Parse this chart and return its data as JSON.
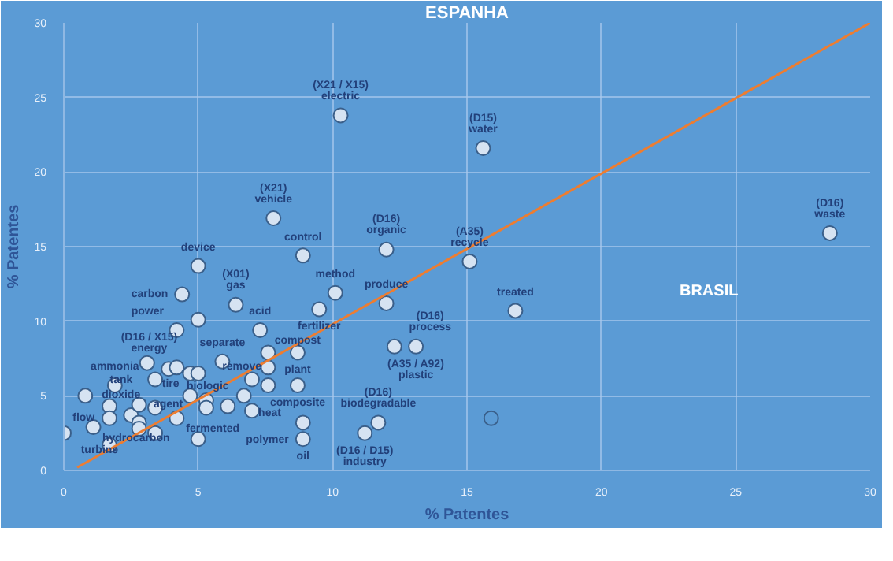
{
  "chart_data": {
    "type": "scatter",
    "title": "ESPANHA",
    "xlabel": "% Patentes",
    "ylabel": "% Patentes",
    "xlim": [
      0,
      30
    ],
    "ylim": [
      0,
      30
    ],
    "xticks": [
      0,
      5,
      10,
      15,
      20,
      25,
      30
    ],
    "yticks": [
      0,
      5,
      10,
      15,
      20,
      25,
      30
    ],
    "grid": true,
    "marker": "circle",
    "series": [
      {
        "color": "#d6e3f2",
        "x": [
          10.3,
          7.8,
          8.9,
          12.0,
          15.6,
          28.5,
          15.1,
          16.8,
          5.0,
          10.1,
          12.0,
          9.5,
          4.4,
          6.4,
          5.0,
          4.2,
          7.3,
          8.7,
          7.6,
          12.3,
          13.1,
          5.9,
          7.6,
          3.1,
          3.9,
          4.2,
          3.4,
          4.7,
          5.0,
          7.0,
          7.6,
          8.7,
          1.9,
          0.8,
          4.7,
          5.3,
          5.3,
          6.7,
          6.1,
          7.0,
          1.7,
          1.7,
          2.5,
          2.8,
          3.4,
          4.2,
          3.4,
          2.8,
          1.1,
          0.0,
          1.7,
          5.0,
          8.9,
          8.9,
          11.7,
          11.2,
          2.8
        ],
        "values": [
          23.8,
          16.9,
          14.4,
          14.8,
          21.6,
          15.9,
          14.0,
          10.7,
          13.7,
          11.9,
          11.2,
          10.8,
          11.8,
          11.1,
          10.1,
          9.4,
          9.4,
          7.9,
          7.9,
          8.3,
          8.3,
          7.3,
          6.9,
          7.2,
          6.8,
          6.9,
          6.1,
          6.5,
          6.5,
          6.1,
          5.7,
          5.7,
          5.7,
          5.0,
          5.0,
          4.7,
          4.2,
          5.0,
          4.3,
          4.0,
          4.3,
          3.5,
          3.7,
          3.2,
          4.2,
          3.5,
          2.5,
          2.8,
          2.9,
          2.5,
          1.7,
          2.1,
          3.2,
          2.1,
          3.2,
          2.5,
          4.4
        ]
      },
      {
        "color": "#5b9bd5",
        "x": [
          15.9
        ],
        "values": [
          3.5
        ]
      },
      {
        "type": "line",
        "marker": "none",
        "color": "#ed7d31",
        "x": [
          0.5,
          30
        ],
        "values": [
          0.2,
          30
        ]
      }
    ],
    "annotations": [
      {
        "text": "(X21 / X15)\nelectric",
        "x": 10.3,
        "y": 23.8
      },
      {
        "text": "(X21)\nvehicle",
        "x": 7.8,
        "y": 16.9
      },
      {
        "text": "control",
        "x": 8.9,
        "y": 14.4
      },
      {
        "text": "(D16)\norganic",
        "x": 12.0,
        "y": 14.8
      },
      {
        "text": "(D15)\nwater",
        "x": 15.6,
        "y": 21.6
      },
      {
        "text": "(D16)\nwaste",
        "x": 28.5,
        "y": 15.9
      },
      {
        "text": "(A35)\nrecycle",
        "x": 15.1,
        "y": 14.0
      },
      {
        "text": "treated",
        "x": 16.8,
        "y": 10.7
      },
      "BRASIL",
      {
        "text": "device",
        "x": 5.0,
        "y": 13.7
      },
      {
        "text": "(X01)\ngas",
        "x": 6.4,
        "y": 11.1
      },
      {
        "text": "method",
        "x": 10.1,
        "y": 11.9
      },
      {
        "text": "fertilizer",
        "x": 9.5,
        "y": 10.8
      },
      {
        "text": "produce",
        "x": 12.0,
        "y": 11.2
      },
      {
        "text": "carbon",
        "x": 4.4,
        "y": 11.8
      },
      {
        "text": "(D16 / X15)\nenergy",
        "x": 5.0,
        "y": 10.1
      },
      {
        "text": "power",
        "x": 4.2,
        "y": 9.4
      },
      {
        "text": "(A35 / A92)\nplastic",
        "x": 13.1,
        "y": 8.3
      },
      {
        "text": "acid",
        "x": 7.3,
        "y": 9.4
      },
      {
        "text": "plant",
        "x": 8.7,
        "y": 7.9
      },
      {
        "text": "biologic",
        "x": 3.9,
        "y": 6.8
      },
      {
        "text": "separate",
        "x": 5.9,
        "y": 7.3
      },
      {
        "text": "compost",
        "x": 7.6,
        "y": 7.9
      },
      {
        "text": "ammonia",
        "x": 1.9,
        "y": 5.7
      },
      {
        "text": "tank",
        "x": 3.1,
        "y": 7.2
      },
      {
        "text": "remove",
        "x": 7.6,
        "y": 6.9
      },
      {
        "text": "composite",
        "x": 8.7,
        "y": 5.7
      },
      {
        "text": "(D16)\nprocess",
        "x": 12.3,
        "y": 8.3
      },
      {
        "text": "dioxide",
        "x": 0.8,
        "y": 5.0
      },
      {
        "text": "turbine",
        "x": 0.0,
        "y": 2.5
      },
      {
        "text": "flow",
        "x": 1.7,
        "y": 3.5
      },
      {
        "text": "hydrocarbon",
        "x": 1.1,
        "y": 2.9
      },
      {
        "text": "fermented",
        "x": 4.2,
        "y": 3.5
      },
      {
        "text": "agent",
        "x": 2.8,
        "y": 3.2
      },
      {
        "text": "tire",
        "x": 4.7,
        "y": 5.0
      },
      {
        "text": "heat",
        "x": 6.7,
        "y": 5.0
      },
      {
        "text": "polymer",
        "x": 8.9,
        "y": 3.2
      },
      {
        "text": "(D16)\nbiodegradable",
        "x": 11.7,
        "y": 3.2
      },
      {
        "text": "oil",
        "x": 8.9,
        "y": 2.1
      },
      {
        "text": "(D16 / D15)\nindustry",
        "x": 11.2,
        "y": 2.5
      }
    ]
  }
}
